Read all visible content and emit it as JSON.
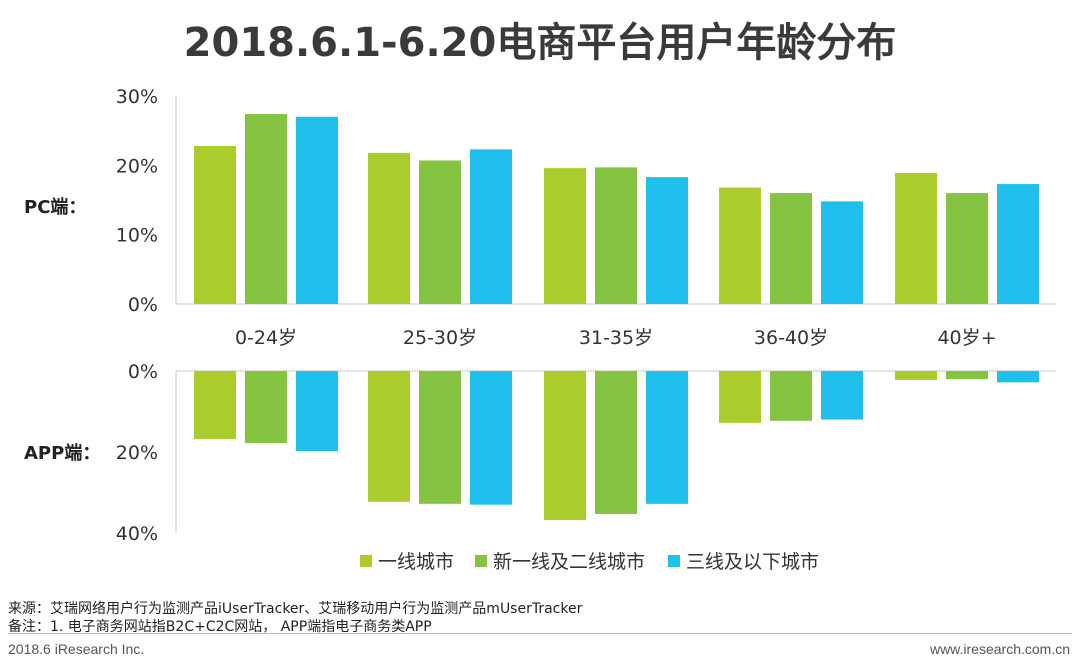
{
  "title": "2018.6.1-6.20电商平台用户年龄分布",
  "colors": {
    "tier1": "#AACC2D",
    "new_tier1_tier2": "#85C441",
    "tier3_below": "#1FC1EC"
  },
  "chart_data": {
    "type": "bar",
    "title": "2018.6.1-6.20电商平台用户年龄分布",
    "categories": [
      "0-24岁",
      "25-30岁",
      "31-35岁",
      "36-40岁",
      "40岁+"
    ],
    "legend": [
      "一线城市",
      "新一线及二线城市",
      "三线及以下城市"
    ],
    "legend_position": "bottom",
    "panels": [
      {
        "label": "PC端：",
        "direction": "up",
        "ylim": [
          0,
          30
        ],
        "yticks": [
          "0%",
          "10%",
          "20%",
          "30%"
        ],
        "ytick_values": [
          0,
          10,
          20,
          30
        ],
        "series": [
          {
            "name": "一线城市",
            "values": [
              22.8,
              21.8,
              19.6,
              16.8,
              18.9
            ]
          },
          {
            "name": "新一线及二线城市",
            "values": [
              27.4,
              20.7,
              19.7,
              16.0,
              16.0
            ]
          },
          {
            "name": "三线及以下城市",
            "values": [
              27.0,
              22.3,
              18.3,
              14.8,
              17.3
            ]
          }
        ]
      },
      {
        "label": "APP端：",
        "direction": "down",
        "ylim": [
          0,
          40
        ],
        "yticks": [
          "0%",
          "20%",
          "40%"
        ],
        "ytick_values": [
          0,
          20,
          40
        ],
        "series": [
          {
            "name": "一线城市",
            "values": [
              16.8,
              32.3,
              36.8,
              12.8,
              2.2
            ]
          },
          {
            "name": "新一线及二线城市",
            "values": [
              17.8,
              32.8,
              35.3,
              12.3,
              2.0
            ]
          },
          {
            "name": "三线及以下城市",
            "values": [
              19.8,
              33.0,
              32.8,
              12.0,
              2.8
            ]
          }
        ]
      }
    ]
  },
  "notes": {
    "source": "来源：艾瑞网络用户行为监测产品iUserTracker、艾瑞移动用户行为监测产品mUserTracker",
    "remark": "备注：1. 电子商务网站指B2C+C2C网站， APP端指电子商务类APP"
  },
  "footer": {
    "left": "2018.6 iResearch Inc.",
    "right": "www.iresearch.com.cn"
  }
}
